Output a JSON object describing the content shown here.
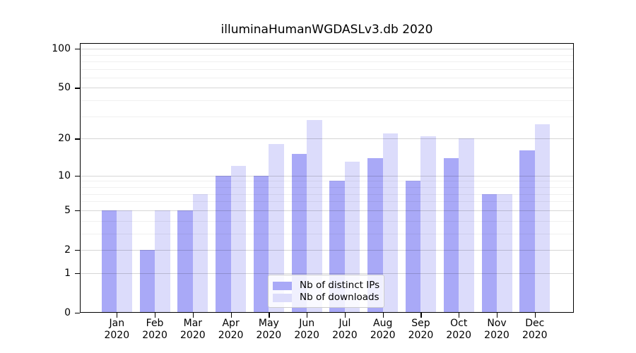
{
  "title": "illuminaHumanWGDASLv3.db 2020",
  "chart_data": {
    "type": "bar",
    "title": "illuminaHumanWGDASLv3.db 2020",
    "categories": [
      "Jan 2020",
      "Feb 2020",
      "Mar 2020",
      "Apr 2020",
      "May 2020",
      "Jun 2020",
      "Jul 2020",
      "Aug 2020",
      "Sep 2020",
      "Oct 2020",
      "Nov 2020",
      "Dec 2020"
    ],
    "series": [
      {
        "name": "Nb of distinct IPs",
        "color": "#a9a9f7",
        "values": [
          5,
          2,
          5,
          10,
          10,
          15,
          9,
          14,
          9,
          14,
          7,
          16
        ]
      },
      {
        "name": "Nb of downloads",
        "color": "#dcdcfb",
        "values": [
          5,
          5,
          7,
          12,
          18,
          28,
          13,
          22,
          21,
          20,
          7,
          26
        ]
      }
    ],
    "yscale": "log1p",
    "yticks": [
      0,
      1,
      2,
      5,
      10,
      20,
      50,
      100
    ],
    "ylim": [
      0,
      110
    ],
    "grid": "horizontal",
    "legend_position": "inside-bottom-center",
    "axis_color": "#000000",
    "grid_major_color": "rgba(0,0,0,0.16)",
    "grid_minor_color": "rgba(0,0,0,0.06)"
  }
}
